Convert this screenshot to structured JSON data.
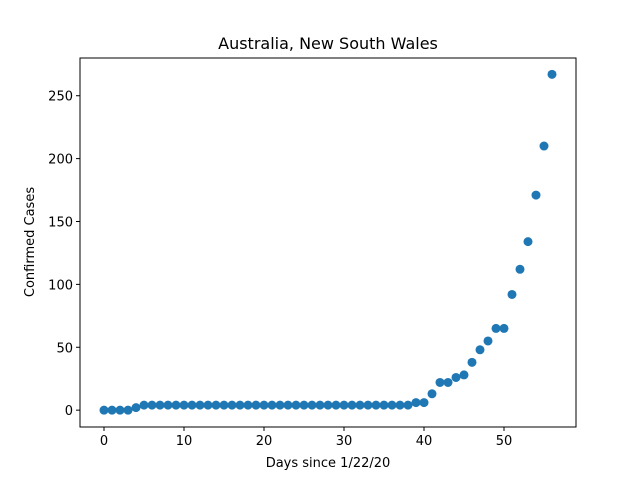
{
  "chart_data": {
    "type": "scatter",
    "title": "Australia, New South Wales",
    "xlabel": "Days since 1/22/20",
    "ylabel": "Confirmed Cases",
    "xlim": [
      -3,
      59
    ],
    "ylim": [
      -13.4,
      280
    ],
    "xticks": [
      0,
      10,
      20,
      30,
      40,
      50
    ],
    "yticks": [
      0,
      50,
      100,
      150,
      200,
      250
    ],
    "grid": false,
    "marker_color": "#1f77b4",
    "x": [
      0,
      1,
      2,
      3,
      4,
      5,
      6,
      7,
      8,
      9,
      10,
      11,
      12,
      13,
      14,
      15,
      16,
      17,
      18,
      19,
      20,
      21,
      22,
      23,
      24,
      25,
      26,
      27,
      28,
      29,
      30,
      31,
      32,
      33,
      34,
      35,
      36,
      37,
      38,
      39,
      40,
      41,
      42,
      43,
      44,
      45,
      46,
      47,
      48,
      49,
      50,
      51,
      52,
      53,
      54,
      55,
      56
    ],
    "y": [
      0,
      0,
      0,
      0,
      2,
      4,
      4,
      4,
      4,
      4,
      4,
      4,
      4,
      4,
      4,
      4,
      4,
      4,
      4,
      4,
      4,
      4,
      4,
      4,
      4,
      4,
      4,
      4,
      4,
      4,
      4,
      4,
      4,
      4,
      4,
      4,
      4,
      4,
      4,
      6,
      6,
      13,
      22,
      22,
      26,
      28,
      38,
      48,
      55,
      65,
      65,
      92,
      112,
      134,
      171,
      210,
      267
    ]
  }
}
